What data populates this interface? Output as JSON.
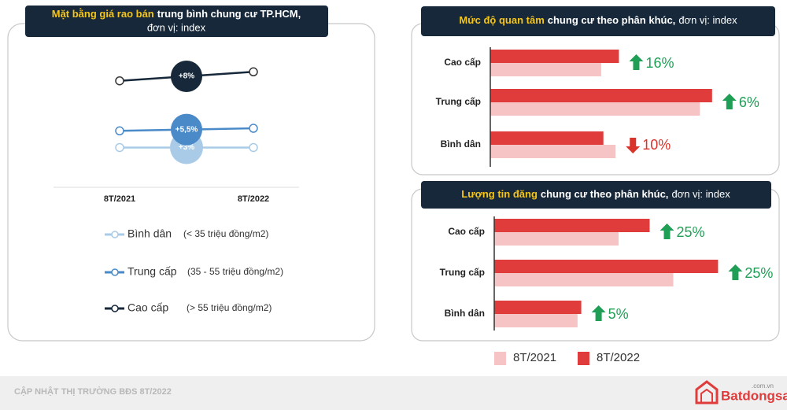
{
  "chart_data": [
    {
      "type": "line",
      "title": [
        "Mặt bằng giá rao bán",
        "trung bình chung cư TP.HCM,",
        "đơn vị: index"
      ],
      "categories": [
        "8T/2021",
        "8T/2022"
      ],
      "ylim": [
        0,
        100
      ],
      "series": [
        {
          "name": "Bình dân",
          "range": "(< 35 triệu đồng/m2)",
          "color": "#a9cbe8",
          "values": [
            31,
            31
          ],
          "annotation": "+3%"
        },
        {
          "name": "Trung cấp",
          "range": "(35 - 55 triệu đồng/m2)",
          "color": "#4a8ac8",
          "values": [
            44,
            46
          ],
          "annotation": "+5,5%"
        },
        {
          "name": "Cao cấp",
          "range": "(> 55 triệu đồng/m2)",
          "color": "#16283a",
          "values": [
            83,
            90
          ],
          "annotation": "+8%"
        }
      ]
    },
    {
      "type": "hbar",
      "title": [
        "Mức độ quan tâm",
        "chung cư theo phân khúc,",
        "đơn vị: index"
      ],
      "categories": [
        "Cao cấp",
        "Trung cấp",
        "Bình dân"
      ],
      "xlim": [
        0,
        220
      ],
      "series": [
        {
          "color": "#f6c4c4",
          "values": [
            100,
            189,
            113
          ]
        },
        {
          "color": "#e03c3c",
          "values": [
            116,
            200,
            102
          ]
        }
      ],
      "change_labels": [
        "16%",
        "6%",
        "10%"
      ],
      "change_direction": [
        "up",
        "up",
        "down"
      ]
    },
    {
      "type": "hbar",
      "title": [
        "Lượng tin đăng",
        "chung cư theo phân khúc,",
        "đơn vị: index"
      ],
      "categories": [
        "Cao cấp",
        "Trung cấp",
        "Bình dân"
      ],
      "xlim": [
        0,
        200
      ],
      "series": [
        {
          "name": "8T/2021",
          "color": "#f6c4c4",
          "values": [
            100,
            144,
            67
          ]
        },
        {
          "name": "8T/2022",
          "color": "#e03c3c",
          "values": [
            125,
            180,
            70
          ]
        }
      ],
      "change_labels": [
        "25%",
        "25%",
        "5%"
      ],
      "change_direction": [
        "up",
        "up",
        "up"
      ]
    }
  ],
  "footer": "CẬP NHẬT THỊ TRƯỜNG BĐS 8T/2022",
  "logo": {
    "name": "Batdongsan",
    "domain": ".com.vn"
  }
}
